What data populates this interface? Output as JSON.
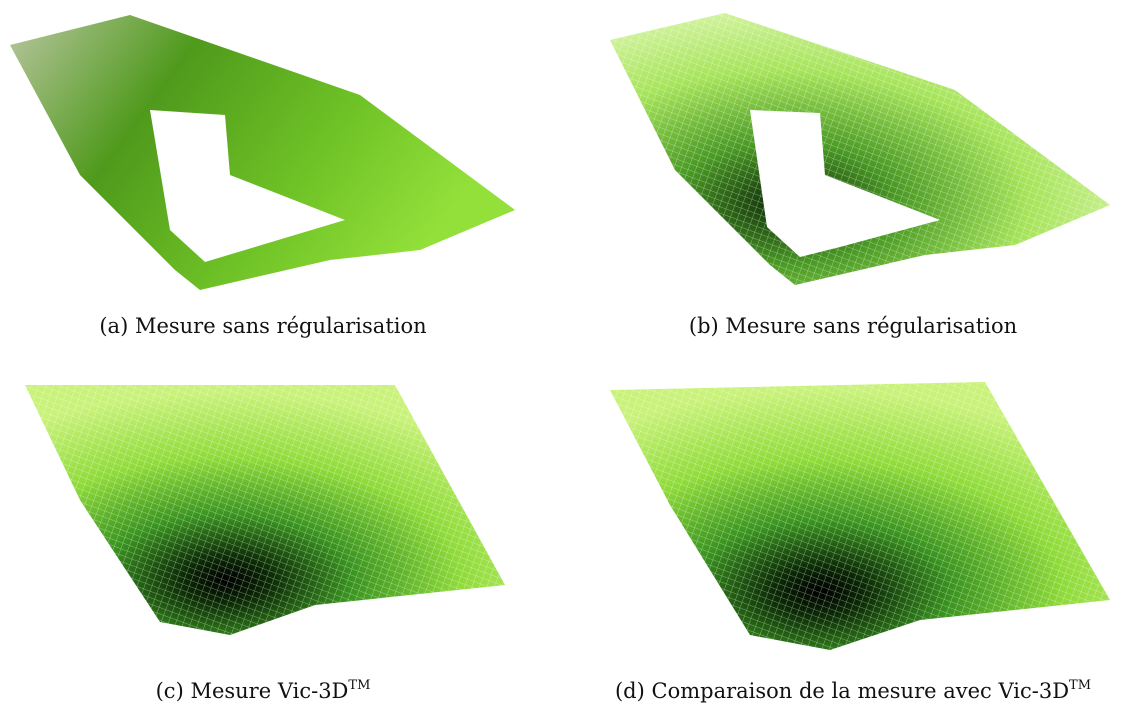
{
  "figures": [
    {
      "label": "(a)",
      "caption": "Mesure sans régularisation"
    },
    {
      "label": "(b)",
      "caption": "Mesure sans régularisation"
    },
    {
      "label": "(c)",
      "caption": "Mesure Vic-3D",
      "sup": "TM"
    },
    {
      "label": "(d)",
      "caption": "Comparaison de la mesure avec Vic-3D",
      "sup": "TM"
    }
  ]
}
